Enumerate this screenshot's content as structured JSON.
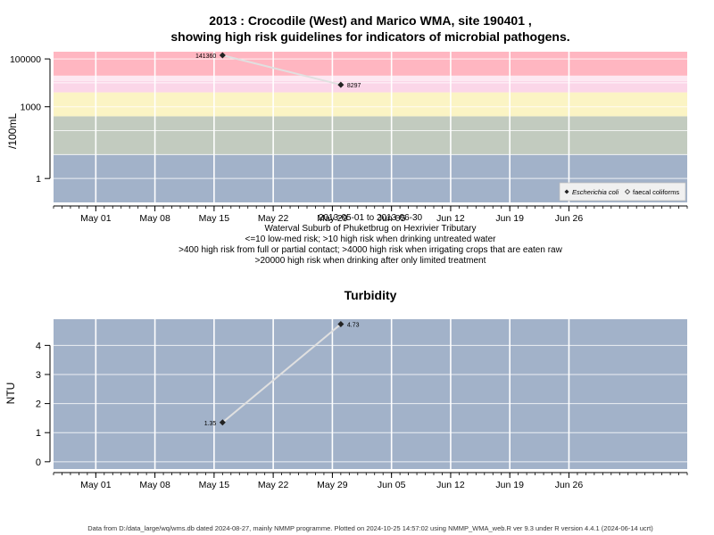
{
  "title": [
    "2013 : Crocodile (West) and Marico WMA, site 190401 ,",
    "showing high risk guidelines for indicators of microbial pathogens."
  ],
  "footer": "Data from D:/data_large/wq/wms.db dated 2024-08-27, mainly NMMP programme. Plotted on 2024-10-25 14:57:02 using NMMP_WMA_web.R ver 9.3 under R version 4.4.1 (2024-06-14 ucrt)",
  "colors": {
    "band_low": "#a2b2c9",
    "band_med": "#c2cbbf",
    "band_yellow": "#fbf4c4",
    "band_pink_light": "#fbd6e8",
    "band_pink_white": "#fde8f2",
    "band_high": "#ffb6c1",
    "panel_bg": "#a2b2c9",
    "grid": "#ffffff",
    "line": "#e0e0e0",
    "point": "#222222"
  },
  "chart_data": [
    {
      "type": "line",
      "panel": "ecoli",
      "ylabel": "/100mL",
      "yscale": "log",
      "ylim": [
        0.1,
        200000
      ],
      "yticks": [
        {
          "v": 1,
          "label": "1"
        },
        {
          "v": 1000,
          "label": "1000"
        },
        {
          "v": 100000,
          "label": "100000"
        }
      ],
      "xlim": [
        "2013-04-26",
        "2013-07-10"
      ],
      "xticks": [
        {
          "date": "2013-05-01",
          "label": "May 01"
        },
        {
          "date": "2013-05-08",
          "label": "May 08"
        },
        {
          "date": "2013-05-15",
          "label": "May 15"
        },
        {
          "date": "2013-05-22",
          "label": "May 22"
        },
        {
          "date": "2013-05-29",
          "label": "May 29"
        },
        {
          "date": "2013-06-05",
          "label": "Jun 05"
        },
        {
          "date": "2013-06-12",
          "label": "Jun 12"
        },
        {
          "date": "2013-06-19",
          "label": "Jun 19"
        },
        {
          "date": "2013-06-26",
          "label": "Jun 26"
        }
      ],
      "guideline_bands": [
        10,
        400,
        4000,
        20000
      ],
      "series": [
        {
          "name": "Escherichia coli",
          "points": [
            {
              "date": "2013-05-16",
              "value": 141360,
              "label": "141360"
            },
            {
              "date": "2013-05-30",
              "value": 8297,
              "label": "8297"
            }
          ]
        }
      ],
      "legend": {
        "position": "bottom-right",
        "entries": [
          "Escherichia coli",
          "faecal coliforms"
        ]
      },
      "caption": [
        "2013-05-01 to 2013-06-30",
        "Waterval Suburb of Phuketbrug on Hexrivier Tributary",
        "<=10 low-med risk; >10 high risk when drinking untreated water",
        ">400 high risk from full or partial contact; >4000 high risk when irrigating crops that are eaten raw",
        ">20000 high risk when drinking after only limited treatment"
      ]
    },
    {
      "type": "line",
      "panel": "turbidity",
      "title": "Turbidity",
      "ylabel": "NTU",
      "ylim": [
        -0.25,
        4.9
      ],
      "yticks": [
        {
          "v": 0,
          "label": "0"
        },
        {
          "v": 1,
          "label": "1"
        },
        {
          "v": 2,
          "label": "2"
        },
        {
          "v": 3,
          "label": "3"
        },
        {
          "v": 4,
          "label": "4"
        }
      ],
      "xlim": [
        "2013-04-26",
        "2013-07-10"
      ],
      "xticks": [
        {
          "date": "2013-05-01",
          "label": "May 01"
        },
        {
          "date": "2013-05-08",
          "label": "May 08"
        },
        {
          "date": "2013-05-15",
          "label": "May 15"
        },
        {
          "date": "2013-05-22",
          "label": "May 22"
        },
        {
          "date": "2013-05-29",
          "label": "May 29"
        },
        {
          "date": "2013-06-05",
          "label": "Jun 05"
        },
        {
          "date": "2013-06-12",
          "label": "Jun 12"
        },
        {
          "date": "2013-06-19",
          "label": "Jun 19"
        },
        {
          "date": "2013-06-26",
          "label": "Jun 26"
        }
      ],
      "series": [
        {
          "points": [
            {
              "date": "2013-05-16",
              "value": 1.35,
              "label": "1.35"
            },
            {
              "date": "2013-05-30",
              "value": 4.73,
              "label": "4.73"
            }
          ]
        }
      ]
    }
  ]
}
